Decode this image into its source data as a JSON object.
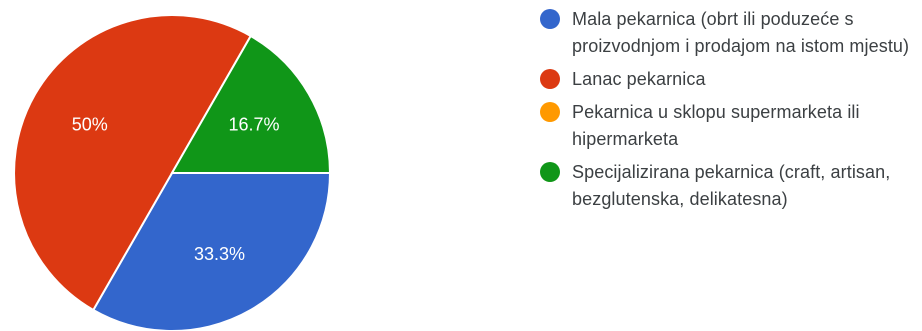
{
  "chart_data": {
    "type": "pie",
    "title": "",
    "slices": [
      {
        "label": "Mala pekarnica (obrt ili poduzeće s proizvodnjom i prodajom na istom mjestu)",
        "value": 33.3,
        "value_label": "33.3%",
        "color": "#3366cc"
      },
      {
        "label": "Lanac pekarnica",
        "value": 50,
        "value_label": "50%",
        "color": "#dc3912"
      },
      {
        "label": "Pekarnica u sklopu supermarketa ili hipermarketa",
        "value": 0,
        "value_label": "",
        "color": "#ff9900"
      },
      {
        "label": "Specijalizirana pekarnica (craft, artisan, bezglutenska, delikatesna)",
        "value": 16.7,
        "value_label": "16.7%",
        "color": "#109618"
      }
    ],
    "legend_position": "right"
  }
}
